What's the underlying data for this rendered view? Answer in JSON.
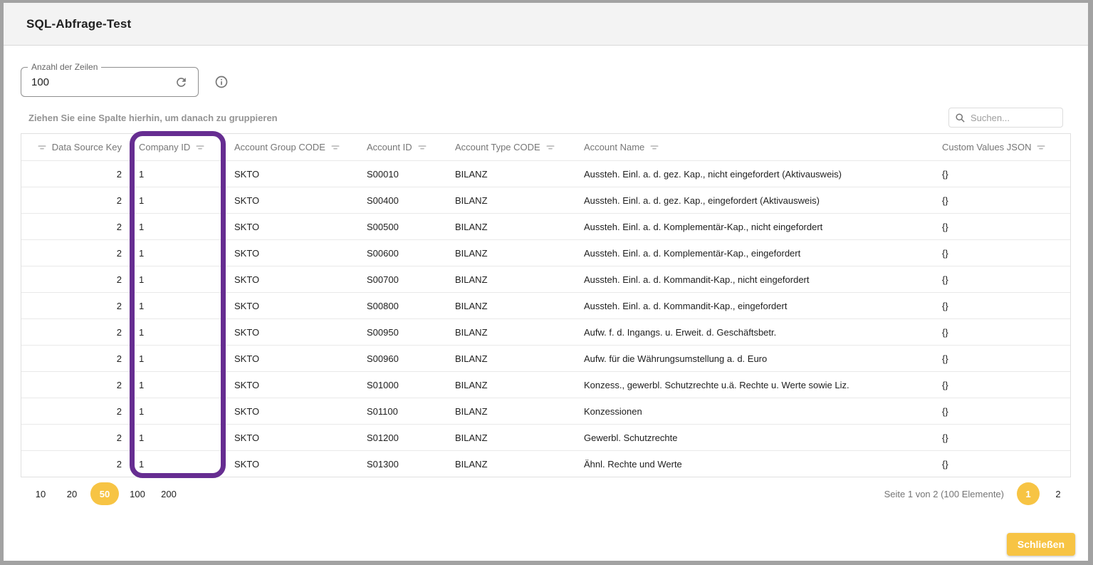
{
  "dialog": {
    "title": "SQL-Abfrage-Test",
    "close_label": "Schließen"
  },
  "toolbar": {
    "rows_input": {
      "label": "Anzahl der Zeilen",
      "value": "100"
    },
    "refresh_icon": "refresh-icon",
    "info_icon": "info-icon",
    "group_panel_hint": "Ziehen Sie eine Spalte hierhin, um danach zu gruppieren",
    "search": {
      "placeholder": "Suchen...",
      "icon": "search-icon"
    }
  },
  "table": {
    "columns": [
      {
        "label": "Data Source Key",
        "align": "right"
      },
      {
        "label": "Company ID",
        "align": "left",
        "highlighted": true
      },
      {
        "label": "Account Group CODE",
        "align": "left"
      },
      {
        "label": "Account ID",
        "align": "left"
      },
      {
        "label": "Account Type CODE",
        "align": "left"
      },
      {
        "label": "Account Name",
        "align": "left"
      },
      {
        "label": "Custom Values JSON",
        "align": "left"
      }
    ],
    "filter_icon": "filter-lines-icon",
    "rows": [
      [
        2,
        1,
        "SKTO",
        "S00010",
        "BILANZ",
        "Aussteh. Einl. a. d. gez. Kap., nicht eingefordert (Aktivausweis)",
        "{}"
      ],
      [
        2,
        1,
        "SKTO",
        "S00400",
        "BILANZ",
        "Aussteh. Einl. a. d. gez. Kap., eingefordert (Aktivausweis)",
        "{}"
      ],
      [
        2,
        1,
        "SKTO",
        "S00500",
        "BILANZ",
        "Aussteh. Einl. a. d. Komplementär-Kap., nicht eingefordert",
        "{}"
      ],
      [
        2,
        1,
        "SKTO",
        "S00600",
        "BILANZ",
        "Aussteh. Einl. a. d. Komplementär-Kap., eingefordert",
        "{}"
      ],
      [
        2,
        1,
        "SKTO",
        "S00700",
        "BILANZ",
        "Aussteh. Einl. a. d. Kommandit-Kap., nicht eingefordert",
        "{}"
      ],
      [
        2,
        1,
        "SKTO",
        "S00800",
        "BILANZ",
        "Aussteh. Einl. a. d. Kommandit-Kap., eingefordert",
        "{}"
      ],
      [
        2,
        1,
        "SKTO",
        "S00950",
        "BILANZ",
        "Aufw. f. d. Ingangs. u. Erweit. d. Geschäftsbetr.",
        "{}"
      ],
      [
        2,
        1,
        "SKTO",
        "S00960",
        "BILANZ",
        "Aufw. für die Währungsumstellung a. d. Euro",
        "{}"
      ],
      [
        2,
        1,
        "SKTO",
        "S01000",
        "BILANZ",
        "Konzess., gewerbl. Schutzrechte u.ä. Rechte u. Werte sowie Liz.",
        "{}"
      ],
      [
        2,
        1,
        "SKTO",
        "S01100",
        "BILANZ",
        "Konzessionen",
        "{}"
      ],
      [
        2,
        1,
        "SKTO",
        "S01200",
        "BILANZ",
        "Gewerbl. Schutzrechte",
        "{}"
      ],
      [
        2,
        1,
        "SKTO",
        "S01300",
        "BILANZ",
        "Ähnl. Rechte und Werte",
        "{}"
      ]
    ]
  },
  "pager": {
    "page_sizes": [
      "10",
      "20",
      "50",
      "100",
      "200"
    ],
    "selected_page_size": "50",
    "info": "Seite 1 von 2 (100 Elemente)",
    "pages": [
      "1",
      "2"
    ],
    "current_page": "1"
  },
  "colors": {
    "accent_yellow": "#f7c444",
    "highlight_purple": "#662d91"
  }
}
